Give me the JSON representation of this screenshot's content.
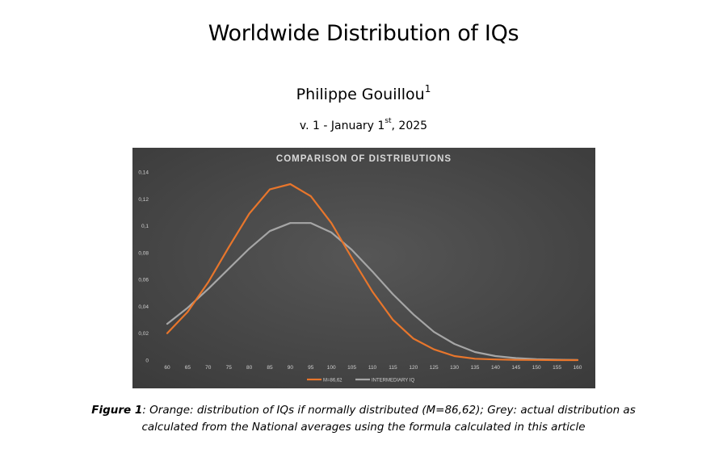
{
  "document": {
    "title": "Worldwide Distribution of IQs",
    "author": "Philippe Gouillou",
    "author_footnote": "1",
    "version_prefix": "v. 1 - January 1",
    "version_sup": "st",
    "version_suffix": ", 2025",
    "caption_label": "Figure 1",
    "caption_text": ": Orange: distribution of IQs if normally distributed (M=86,62); Grey: actual distribution as calculated from the National averages using the formula calculated in this article"
  },
  "chart_data": {
    "type": "line",
    "title": "COMPARISON OF DISTRIBUTIONS",
    "xlabel": "",
    "ylabel": "",
    "x": [
      60,
      65,
      70,
      75,
      80,
      85,
      90,
      95,
      100,
      105,
      110,
      115,
      120,
      125,
      130,
      135,
      140,
      145,
      150,
      155,
      160
    ],
    "x_tick_labels": [
      "60",
      "65",
      "70",
      "75",
      "80",
      "85",
      "90",
      "95",
      "100",
      "105",
      "110",
      "115",
      "120",
      "125",
      "130",
      "135",
      "140",
      "145",
      "150",
      "155",
      "160"
    ],
    "ylim": [
      0,
      0.14
    ],
    "y_ticks": [
      0,
      0.02,
      0.04,
      0.06,
      0.08,
      0.1,
      0.12,
      0.14
    ],
    "y_tick_labels": [
      "0",
      "0,02",
      "0,04",
      "0,06",
      "0,08",
      "0,1",
      "0,12",
      "0,14"
    ],
    "grid": false,
    "legend_position": "bottom",
    "background_color": "#3a3a3a",
    "series": [
      {
        "name": "M=86,62",
        "color": "#e8762c",
        "values": [
          0.02,
          0.036,
          0.058,
          0.084,
          0.109,
          0.127,
          0.131,
          0.122,
          0.102,
          0.076,
          0.051,
          0.03,
          0.016,
          0.008,
          0.003,
          0.001,
          0.0005,
          0.0002,
          0.0001,
          0.0,
          0.0
        ]
      },
      {
        "name": "INTERMEDIARY IQ",
        "color": "#a6a6a6",
        "values": [
          0.027,
          0.039,
          0.053,
          0.068,
          0.083,
          0.096,
          0.102,
          0.102,
          0.095,
          0.082,
          0.066,
          0.049,
          0.034,
          0.021,
          0.012,
          0.006,
          0.003,
          0.0015,
          0.0007,
          0.0003,
          0.0001
        ]
      }
    ]
  }
}
